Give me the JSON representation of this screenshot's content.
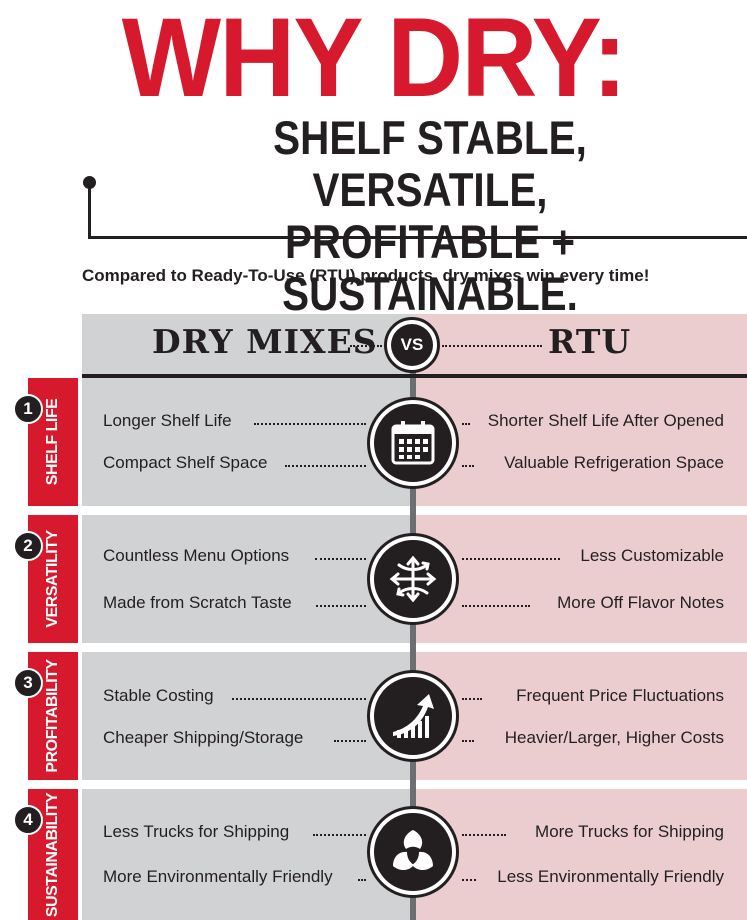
{
  "title": "WHY DRY:",
  "subtitle_line1": "SHELF STABLE, VERSATILE,",
  "subtitle_line2": "PROFITABLE + SUSTAINABLE.",
  "intro": "Compared to Ready-To-Use (RTU) products, dry mixes win every time!",
  "header": {
    "left": "DRY MIXES",
    "vs": "VS",
    "right": "RTU"
  },
  "colors": {
    "accent_red": "#d7192d",
    "left_bg": "#d1d2d4",
    "right_bg": "#ebcdd0",
    "dark": "#231f20"
  },
  "sections": [
    {
      "number": "1",
      "label": "SHELF LIFE",
      "icon": "calendar-icon",
      "left": [
        "Longer Shelf Life",
        "Compact Shelf Space"
      ],
      "right": [
        "Shorter Shelf Life After Opened",
        "Valuable Refrigeration Space"
      ]
    },
    {
      "number": "2",
      "label": "VERSATILITY",
      "icon": "multi-direction-arrows-icon",
      "left": [
        "Countless Menu Options",
        "Made from Scratch Taste"
      ],
      "right": [
        "Less Customizable",
        "More Off Flavor Notes"
      ]
    },
    {
      "number": "3",
      "label": "PROFITABILITY",
      "icon": "growth-chart-icon",
      "left": [
        "Stable Costing",
        "Cheaper Shipping/Storage"
      ],
      "right": [
        "Frequent Price Fluctuations",
        "Heavier/Larger, Higher Costs"
      ]
    },
    {
      "number": "4",
      "label": "SUSTAINABILITY",
      "icon": "leaves-icon",
      "left": [
        "Less Trucks for Shipping",
        "More Environmentally Friendly"
      ],
      "right": [
        "More Trucks for Shipping",
        "Less Environmentally Friendly"
      ]
    }
  ]
}
